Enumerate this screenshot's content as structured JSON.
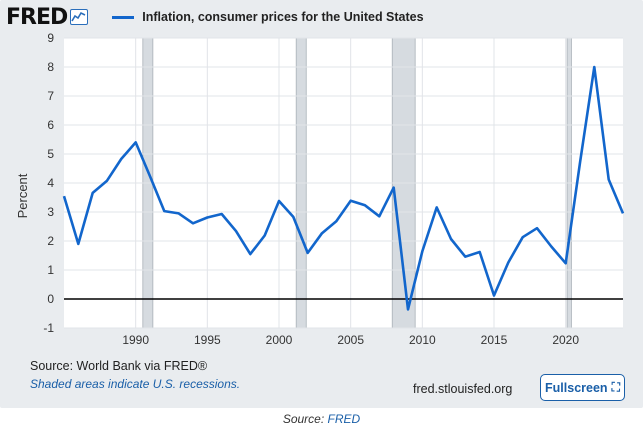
{
  "header": {
    "logo_text": "FRED",
    "series_title": "Inflation, consumer prices for the United States"
  },
  "chart_data": {
    "type": "line",
    "title": "Inflation, consumer prices for the United States",
    "ylabel": "Percent",
    "xlabel": "",
    "ylim": [
      -1,
      9
    ],
    "yticks": [
      -1,
      0,
      1,
      2,
      3,
      4,
      5,
      6,
      7,
      8,
      9
    ],
    "xlim": [
      1985,
      2024
    ],
    "xticks": [
      1990,
      1995,
      2000,
      2005,
      2010,
      2015,
      2020
    ],
    "grid": true,
    "recessions": [
      [
        1990.5,
        1991.2
      ],
      [
        2001.2,
        2001.9
      ],
      [
        2007.9,
        2009.5
      ],
      [
        2020.1,
        2020.4
      ]
    ],
    "series": [
      {
        "name": "Inflation, consumer prices for the United States",
        "color": "#1266cc",
        "x": [
          1985,
          1986,
          1987,
          1988,
          1989,
          1990,
          1991,
          1992,
          1993,
          1994,
          1995,
          1996,
          1997,
          1998,
          1999,
          2000,
          2001,
          2002,
          2003,
          2004,
          2005,
          2006,
          2007,
          2008,
          2009,
          2010,
          2011,
          2012,
          2013,
          2014,
          2015,
          2016,
          2017,
          2018,
          2019,
          2020,
          2021,
          2022,
          2023,
          2024
        ],
        "values": [
          3.55,
          1.9,
          3.66,
          4.08,
          4.83,
          5.4,
          4.23,
          3.03,
          2.95,
          2.61,
          2.81,
          2.93,
          2.34,
          1.55,
          2.19,
          3.38,
          2.83,
          1.59,
          2.27,
          2.68,
          3.39,
          3.23,
          2.85,
          3.84,
          -0.36,
          1.64,
          3.16,
          2.07,
          1.46,
          1.62,
          0.12,
          1.26,
          2.13,
          2.44,
          1.81,
          1.23,
          4.7,
          8.0,
          4.12,
          2.95
        ]
      }
    ]
  },
  "footer": {
    "source": "Source: World Bank via FRED®",
    "recession_note": "Shaded areas indicate U.S. recessions.",
    "url": "fred.stlouisfed.org",
    "fullscreen_label": "Fullscreen",
    "fullscreen_icon": "fullscreen-icon"
  },
  "caption": {
    "prefix": "Source: ",
    "link": "FRED"
  }
}
